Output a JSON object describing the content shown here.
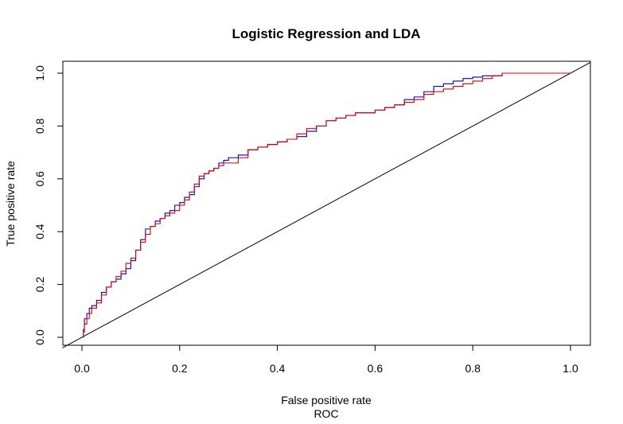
{
  "chart_data": {
    "type": "line",
    "title": "Logistic Regression and LDA",
    "xlabel": "False positive rate",
    "xlabel2": "ROC",
    "ylabel": "True positive rate",
    "xlim": [
      0,
      1
    ],
    "ylim": [
      0,
      1
    ],
    "xticks": [
      "0.0",
      "0.2",
      "0.4",
      "0.6",
      "0.8",
      "1.0"
    ],
    "yticks": [
      "0.0",
      "0.2",
      "0.4",
      "0.6",
      "0.8",
      "1.0"
    ],
    "grid": false,
    "legend": "none",
    "reference_line": {
      "x": [
        0,
        1
      ],
      "y": [
        0,
        1
      ],
      "color": "#000000"
    },
    "series": [
      {
        "color": "#0000cc",
        "x": [
          0.0,
          0.003,
          0.005,
          0.01,
          0.015,
          0.02,
          0.03,
          0.04,
          0.05,
          0.06,
          0.07,
          0.08,
          0.09,
          0.1,
          0.11,
          0.12,
          0.13,
          0.14,
          0.15,
          0.16,
          0.17,
          0.18,
          0.19,
          0.2,
          0.21,
          0.22,
          0.23,
          0.24,
          0.25,
          0.26,
          0.27,
          0.28,
          0.29,
          0.3,
          0.32,
          0.34,
          0.36,
          0.38,
          0.4,
          0.42,
          0.44,
          0.46,
          0.48,
          0.5,
          0.52,
          0.54,
          0.56,
          0.58,
          0.6,
          0.62,
          0.64,
          0.66,
          0.68,
          0.7,
          0.72,
          0.74,
          0.76,
          0.78,
          0.8,
          0.82,
          0.84,
          0.86,
          0.88,
          0.9,
          0.92,
          0.94,
          0.96,
          0.98,
          1.0
        ],
        "y": [
          0.0,
          0.03,
          0.07,
          0.09,
          0.11,
          0.12,
          0.14,
          0.17,
          0.19,
          0.21,
          0.22,
          0.24,
          0.26,
          0.29,
          0.33,
          0.37,
          0.41,
          0.42,
          0.44,
          0.45,
          0.47,
          0.48,
          0.5,
          0.51,
          0.53,
          0.54,
          0.57,
          0.6,
          0.62,
          0.63,
          0.64,
          0.66,
          0.67,
          0.68,
          0.69,
          0.71,
          0.72,
          0.73,
          0.74,
          0.75,
          0.76,
          0.78,
          0.8,
          0.82,
          0.83,
          0.84,
          0.85,
          0.85,
          0.86,
          0.87,
          0.88,
          0.9,
          0.91,
          0.93,
          0.95,
          0.96,
          0.97,
          0.98,
          0.985,
          0.99,
          0.99,
          1.0,
          1.0,
          1.0,
          1.0,
          1.0,
          1.0,
          1.0,
          1.0
        ]
      },
      {
        "color": "#dd0000",
        "x": [
          0.0,
          0.003,
          0.005,
          0.01,
          0.015,
          0.02,
          0.03,
          0.04,
          0.05,
          0.06,
          0.07,
          0.08,
          0.09,
          0.1,
          0.11,
          0.12,
          0.13,
          0.14,
          0.15,
          0.16,
          0.17,
          0.18,
          0.19,
          0.2,
          0.21,
          0.22,
          0.23,
          0.24,
          0.25,
          0.26,
          0.27,
          0.28,
          0.29,
          0.3,
          0.32,
          0.34,
          0.36,
          0.38,
          0.4,
          0.42,
          0.44,
          0.46,
          0.48,
          0.5,
          0.52,
          0.54,
          0.56,
          0.58,
          0.6,
          0.62,
          0.64,
          0.66,
          0.68,
          0.7,
          0.72,
          0.74,
          0.76,
          0.78,
          0.8,
          0.82,
          0.84,
          0.86,
          0.88,
          0.9,
          0.92,
          0.94,
          0.96,
          0.98,
          1.0
        ],
        "y": [
          0.0,
          0.02,
          0.05,
          0.07,
          0.09,
          0.11,
          0.13,
          0.16,
          0.19,
          0.21,
          0.23,
          0.25,
          0.28,
          0.3,
          0.33,
          0.36,
          0.39,
          0.42,
          0.43,
          0.45,
          0.46,
          0.47,
          0.48,
          0.5,
          0.52,
          0.55,
          0.58,
          0.61,
          0.62,
          0.63,
          0.64,
          0.65,
          0.66,
          0.66,
          0.68,
          0.71,
          0.72,
          0.73,
          0.74,
          0.75,
          0.77,
          0.79,
          0.8,
          0.82,
          0.83,
          0.84,
          0.85,
          0.85,
          0.86,
          0.87,
          0.88,
          0.89,
          0.9,
          0.92,
          0.93,
          0.94,
          0.95,
          0.96,
          0.97,
          0.98,
          0.99,
          1.0,
          1.0,
          1.0,
          1.0,
          1.0,
          1.0,
          1.0,
          1.0
        ]
      }
    ]
  }
}
